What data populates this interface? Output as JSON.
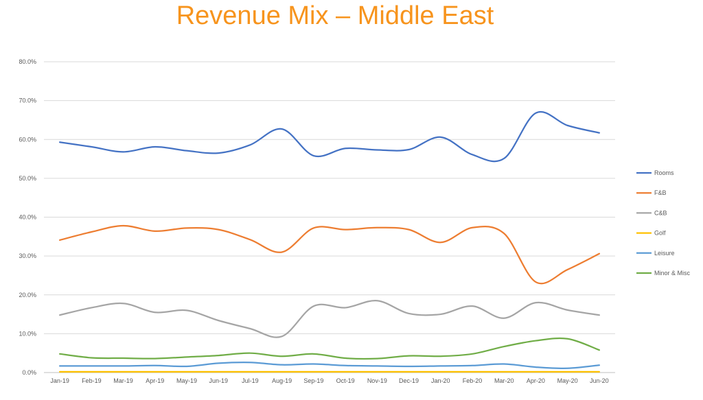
{
  "chart_data": {
    "type": "line",
    "title": "Revenue Mix – Middle East",
    "title_color": "#F7941D",
    "xlabel": "",
    "ylabel": "",
    "ylim": [
      0,
      80
    ],
    "y_ticks": [
      0,
      10,
      20,
      30,
      40,
      50,
      60,
      70,
      80
    ],
    "y_tick_labels": [
      "0.0%",
      "10.0%",
      "20.0%",
      "30.0%",
      "40.0%",
      "50.0%",
      "60.0%",
      "70.0%",
      "80.0%"
    ],
    "grid": true,
    "legend_position": "right",
    "smooth": true,
    "categories": [
      "Jan-19",
      "Feb-19",
      "Mar-19",
      "Apr-19",
      "May-19",
      "Jun-19",
      "Jul-19",
      "Aug-19",
      "Sep-19",
      "Oct-19",
      "Nov-19",
      "Dec-19",
      "Jan-20",
      "Feb-20",
      "Mar-20",
      "Apr-20",
      "May-20",
      "Jun-20"
    ],
    "series": [
      {
        "name": "Rooms",
        "color": "#4472C4",
        "values": [
          59.3,
          58.1,
          56.8,
          58.1,
          57.1,
          56.5,
          58.6,
          62.7,
          55.8,
          57.7,
          57.3,
          57.4,
          60.6,
          56.1,
          55.1,
          66.8,
          63.6,
          61.7
        ]
      },
      {
        "name": "F&B",
        "color": "#ED7D31",
        "values": [
          34.1,
          36.2,
          37.8,
          36.4,
          37.2,
          36.8,
          34.2,
          31.0,
          37.2,
          36.8,
          37.3,
          36.8,
          33.5,
          37.3,
          35.8,
          23.3,
          26.5,
          30.6
        ]
      },
      {
        "name": "C&B",
        "color": "#A5A5A5",
        "values": [
          14.8,
          16.7,
          17.8,
          15.5,
          16.0,
          13.4,
          11.3,
          9.3,
          17.1,
          16.7,
          18.5,
          15.2,
          15.0,
          17.1,
          14.0,
          18.0,
          16.1,
          14.8
        ]
      },
      {
        "name": "Golf",
        "color": "#FFC000",
        "values": [
          0.2,
          0.2,
          0.2,
          0.2,
          0.2,
          0.2,
          0.2,
          0.2,
          0.2,
          0.2,
          0.2,
          0.2,
          0.2,
          0.2,
          0.2,
          0.2,
          0.2,
          0.2
        ]
      },
      {
        "name": "Leisure",
        "color": "#5B9BD5",
        "values": [
          1.7,
          1.7,
          1.7,
          1.8,
          1.6,
          2.4,
          2.6,
          2.0,
          2.2,
          1.8,
          1.7,
          1.6,
          1.7,
          1.8,
          2.2,
          1.4,
          1.1,
          1.9
        ]
      },
      {
        "name": "Minor & Misc",
        "color": "#70AD47",
        "values": [
          4.8,
          3.8,
          3.7,
          3.6,
          4.0,
          4.4,
          5.0,
          4.2,
          4.8,
          3.7,
          3.6,
          4.3,
          4.2,
          4.8,
          6.7,
          8.2,
          8.7,
          5.8
        ]
      }
    ]
  }
}
